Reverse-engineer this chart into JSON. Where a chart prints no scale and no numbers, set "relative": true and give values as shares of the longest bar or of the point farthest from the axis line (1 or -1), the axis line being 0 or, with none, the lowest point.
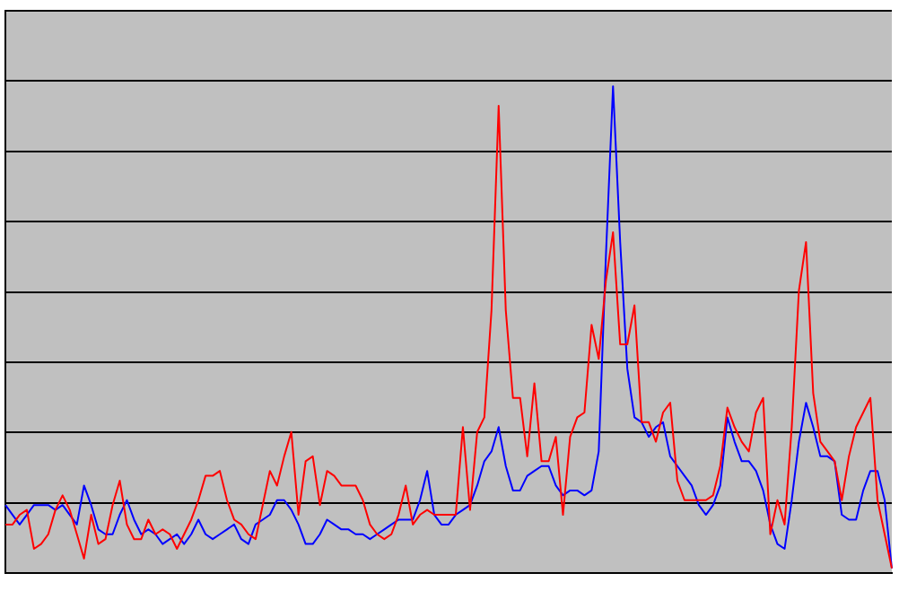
{
  "chart_data": {
    "type": "line",
    "relative": true,
    "grid": "y",
    "legend": false,
    "marker": "none",
    "line_style": "solid",
    "categories": [
      null,
      null,
      null,
      null,
      null,
      null,
      null,
      null,
      null,
      null,
      null,
      null,
      null,
      null,
      null,
      null,
      null,
      null,
      null,
      null,
      null,
      null,
      null,
      null,
      null,
      null,
      null,
      null,
      null,
      null,
      null,
      null,
      null,
      null,
      null,
      null,
      null,
      null,
      null,
      null,
      null,
      null,
      null,
      null,
      null,
      null,
      null,
      null,
      null,
      null,
      null,
      null,
      null,
      null,
      null,
      null,
      null,
      null,
      null,
      null,
      null,
      null,
      null,
      null,
      null,
      null,
      null,
      null,
      null,
      null,
      null,
      null,
      null,
      null,
      null,
      null,
      null,
      null,
      null,
      null,
      null,
      null,
      null,
      null,
      null,
      null,
      null,
      null,
      null,
      null,
      null,
      null,
      null,
      null,
      null,
      null,
      null,
      null,
      null,
      null,
      null,
      null,
      null,
      null,
      null,
      null,
      null,
      null,
      null,
      null,
      null,
      null,
      null,
      null,
      null,
      null,
      null,
      null,
      null,
      null,
      null,
      null,
      null,
      null,
      null
    ],
    "series": [
      {
        "color": "#ff0000",
        "values": [
          0.1,
          0.1,
          0.12,
          0.13,
          0.05,
          0.06,
          0.08,
          0.13,
          0.16,
          0.13,
          0.08,
          0.03,
          0.12,
          0.06,
          0.07,
          0.14,
          0.19,
          0.1,
          0.07,
          0.07,
          0.11,
          0.08,
          0.09,
          0.08,
          0.05,
          0.08,
          0.11,
          0.15,
          0.2,
          0.2,
          0.21,
          0.15,
          0.11,
          0.1,
          0.08,
          0.07,
          0.14,
          0.21,
          0.18,
          0.24,
          0.29,
          0.12,
          0.23,
          0.24,
          0.14,
          0.21,
          0.2,
          0.18,
          0.18,
          0.18,
          0.15,
          0.1,
          0.08,
          0.07,
          0.08,
          0.12,
          0.18,
          0.1,
          0.12,
          0.13,
          0.12,
          0.12,
          0.12,
          0.12,
          0.3,
          0.13,
          0.29,
          0.32,
          0.54,
          0.96,
          0.54,
          0.36,
          0.36,
          0.24,
          0.39,
          0.23,
          0.23,
          0.28,
          0.12,
          0.28,
          0.32,
          0.33,
          0.51,
          0.44,
          0.6,
          0.7,
          0.47,
          0.47,
          0.55,
          0.31,
          0.31,
          0.27,
          0.33,
          0.35,
          0.19,
          0.15,
          0.15,
          0.15,
          0.15,
          0.16,
          0.22,
          0.34,
          0.3,
          0.27,
          0.25,
          0.33,
          0.36,
          0.08,
          0.15,
          0.1,
          0.3,
          0.58,
          0.68,
          0.37,
          0.27,
          0.25,
          0.23,
          0.15,
          0.24,
          0.3,
          0.33,
          0.36,
          0.15,
          0.08,
          0.01
        ]
      },
      {
        "color": "#0000ff",
        "values": [
          0.14,
          0.12,
          0.1,
          0.12,
          0.14,
          0.14,
          0.14,
          0.13,
          0.14,
          0.12,
          0.1,
          0.18,
          0.14,
          0.09,
          0.08,
          0.08,
          0.12,
          0.15,
          0.11,
          0.08,
          0.09,
          0.08,
          0.06,
          0.07,
          0.08,
          0.06,
          0.08,
          0.11,
          0.08,
          0.07,
          0.08,
          0.09,
          0.1,
          0.07,
          0.06,
          0.1,
          0.11,
          0.12,
          0.15,
          0.15,
          0.13,
          0.1,
          0.06,
          0.06,
          0.08,
          0.11,
          0.1,
          0.09,
          0.09,
          0.08,
          0.08,
          0.07,
          0.08,
          0.09,
          0.1,
          0.11,
          0.11,
          0.11,
          0.15,
          0.21,
          0.12,
          0.1,
          0.1,
          0.12,
          0.13,
          0.14,
          0.18,
          0.23,
          0.25,
          0.3,
          0.22,
          0.17,
          0.17,
          0.2,
          0.21,
          0.22,
          0.22,
          0.18,
          0.16,
          0.17,
          0.17,
          0.16,
          0.17,
          0.25,
          0.65,
          1.0,
          0.68,
          0.42,
          0.32,
          0.31,
          0.28,
          0.3,
          0.31,
          0.24,
          0.22,
          0.2,
          0.18,
          0.14,
          0.12,
          0.14,
          0.18,
          0.32,
          0.27,
          0.23,
          0.23,
          0.21,
          0.17,
          0.1,
          0.06,
          0.05,
          0.15,
          0.27,
          0.35,
          0.3,
          0.24,
          0.24,
          0.23,
          0.12,
          0.11,
          0.11,
          0.17,
          0.21,
          0.21,
          0.15,
          0.01
        ]
      }
    ]
  }
}
